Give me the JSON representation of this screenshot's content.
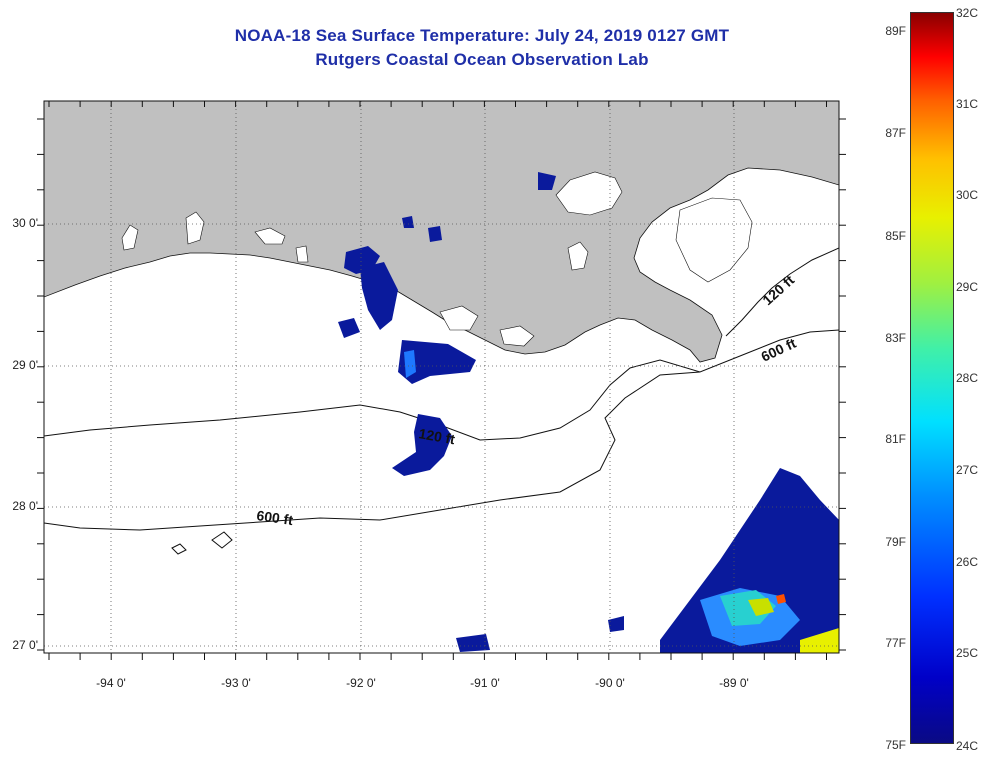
{
  "title": {
    "line1": "NOAA-18 Sea Surface Temperature:  July 24, 2019 0127 GMT",
    "line2": "Rutgers Coastal Ocean Observation Lab"
  },
  "map": {
    "region": "Northern Gulf of Mexico / Louisiana coast",
    "lat_labels": [
      "30 0'",
      "29 0'",
      "28 0'",
      "27 0'"
    ],
    "lon_labels": [
      "-94 0'",
      "-93 0'",
      "-92 0'",
      "-91 0'",
      "-90 0'",
      "-89 0'"
    ],
    "isobath_labels": [
      "120 ft",
      "600 ft",
      "120 ft",
      "600 ft"
    ],
    "colors": {
      "land": "#c0c0c0",
      "water_no_data": "#ffffff",
      "sst_24c": "#0a0a84"
    }
  },
  "colorbar": {
    "f_labels": [
      "89F",
      "87F",
      "85F",
      "83F",
      "81F",
      "79F",
      "77F",
      "75F"
    ],
    "c_labels": [
      "32C",
      "31C",
      "30C",
      "29C",
      "28C",
      "27C",
      "26C",
      "25C",
      "24C"
    ],
    "min_c": 24,
    "max_c": 32,
    "min_f": 75,
    "max_f": 89
  }
}
